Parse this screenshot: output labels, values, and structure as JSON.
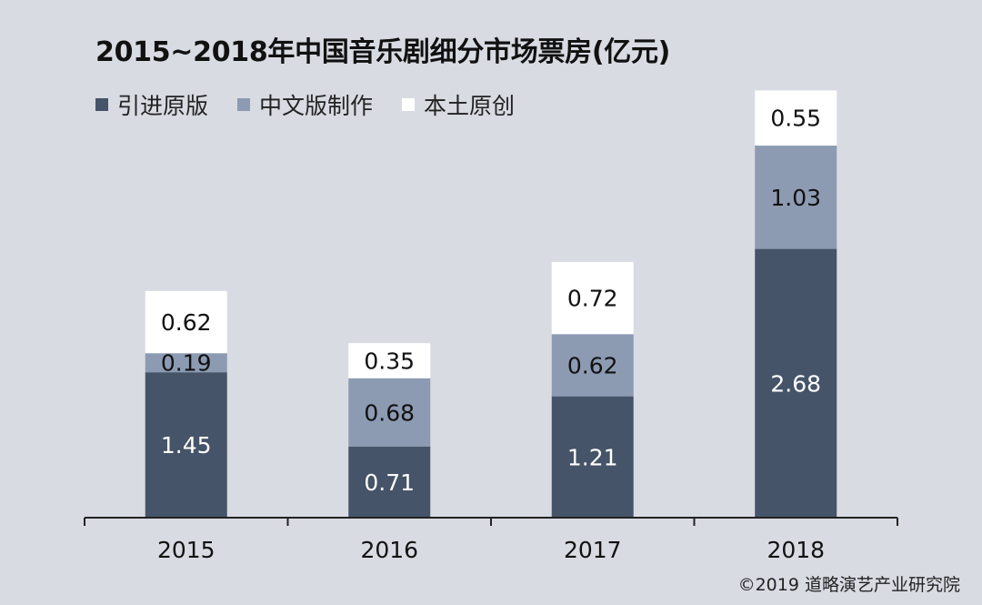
{
  "colors": {
    "background": "#d9dbe3",
    "series": [
      "#455468",
      "#8c9bb2",
      "#ffffff"
    ],
    "label_dark_text": "#ffffff",
    "label_light_text": "#111111",
    "axis": "#222222"
  },
  "footer": {
    "text": "©2019 道略演艺产业研究院"
  },
  "chart_data": {
    "type": "bar",
    "stacked": true,
    "title": "2015~2018年中国音乐剧细分市场票房(亿元)",
    "xlabel": "",
    "ylabel": "",
    "categories": [
      "2015",
      "2016",
      "2017",
      "2018"
    ],
    "series": [
      {
        "name": "引进原版",
        "values": [
          1.45,
          0.71,
          1.21,
          2.68
        ]
      },
      {
        "name": "中文版制作",
        "values": [
          0.19,
          0.68,
          0.62,
          1.03
        ]
      },
      {
        "name": "本土原创",
        "values": [
          0.62,
          0.35,
          0.72,
          0.55
        ]
      }
    ],
    "data_labels": [
      [
        "1.45",
        "0.71",
        "1.21",
        "2.68"
      ],
      [
        "0.19",
        "0.68",
        "0.62",
        "1.03"
      ],
      [
        "0.62",
        "0.35",
        "0.72",
        "0.55"
      ]
    ],
    "ylim": [
      0,
      4.3
    ],
    "grid": false,
    "legend_position": "top-left"
  }
}
